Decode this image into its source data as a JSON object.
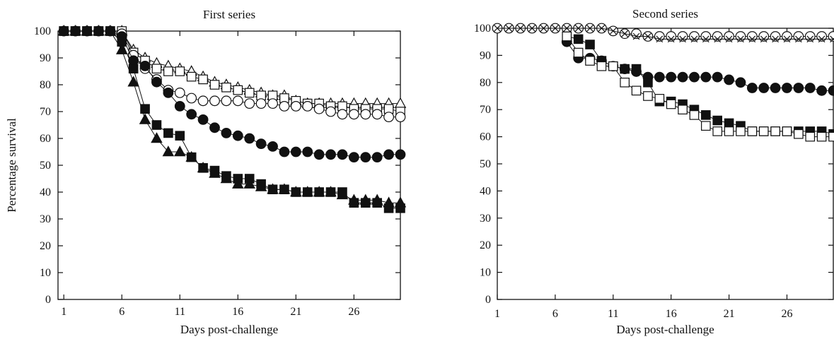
{
  "chart_data": [
    {
      "type": "scatter",
      "title": "First series",
      "xlabel": "Days post-challenge",
      "ylabel": "Percentage survival",
      "xlim": [
        0.5,
        30
      ],
      "ylim": [
        0,
        100
      ],
      "xticks": [
        1,
        6,
        11,
        16,
        21,
        26
      ],
      "yticks": [
        0,
        10,
        20,
        30,
        40,
        50,
        60,
        70,
        80,
        90,
        100
      ],
      "grid": false,
      "series": [
        {
          "marker": "triangle-open",
          "x": [
            1,
            2,
            3,
            4,
            5,
            6,
            7,
            8,
            9,
            10,
            11,
            12,
            13,
            14,
            15,
            16,
            17,
            18,
            19,
            20,
            21,
            22,
            23,
            24,
            25,
            26,
            27,
            28,
            29,
            30
          ],
          "values": [
            100,
            100,
            100,
            100,
            100,
            100,
            93,
            90,
            88,
            87,
            86,
            85,
            83,
            81,
            80,
            79,
            78,
            77,
            76,
            76,
            74,
            73,
            73,
            73,
            73,
            73,
            73,
            73,
            73,
            73
          ]
        },
        {
          "marker": "square-open",
          "x": [
            1,
            2,
            3,
            4,
            5,
            6,
            7,
            8,
            9,
            10,
            11,
            12,
            13,
            14,
            15,
            16,
            17,
            18,
            19,
            20,
            21,
            22,
            23,
            24,
            25,
            26,
            27,
            28,
            29,
            30
          ],
          "values": [
            100,
            100,
            100,
            100,
            100,
            100,
            92,
            89,
            86,
            85,
            85,
            83,
            82,
            80,
            79,
            78,
            77,
            76,
            76,
            75,
            74,
            73,
            73,
            72,
            72,
            71,
            71,
            71,
            71,
            70
          ]
        },
        {
          "marker": "circle-open",
          "x": [
            1,
            2,
            3,
            4,
            5,
            6,
            7,
            8,
            9,
            10,
            11,
            12,
            13,
            14,
            15,
            16,
            17,
            18,
            19,
            20,
            21,
            22,
            23,
            24,
            25,
            26,
            27,
            28,
            29,
            30
          ],
          "values": [
            100,
            100,
            100,
            100,
            100,
            99,
            91,
            86,
            82,
            78,
            77,
            75,
            74,
            74,
            74,
            74,
            73,
            73,
            73,
            72,
            72,
            72,
            71,
            70,
            69,
            69,
            69,
            69,
            68,
            68
          ]
        },
        {
          "marker": "circle-filled",
          "x": [
            1,
            2,
            3,
            4,
            5,
            6,
            7,
            8,
            9,
            10,
            11,
            12,
            13,
            14,
            15,
            16,
            17,
            18,
            19,
            20,
            21,
            22,
            23,
            24,
            25,
            26,
            27,
            28,
            29,
            30
          ],
          "values": [
            100,
            100,
            100,
            100,
            100,
            98,
            89,
            87,
            81,
            77,
            72,
            69,
            67,
            64,
            62,
            61,
            60,
            58,
            57,
            55,
            55,
            55,
            54,
            54,
            54,
            53,
            53,
            53,
            54,
            54
          ]
        },
        {
          "marker": "square-filled",
          "x": [
            1,
            2,
            3,
            4,
            5,
            6,
            7,
            8,
            9,
            10,
            11,
            12,
            13,
            14,
            15,
            16,
            17,
            18,
            19,
            20,
            21,
            22,
            23,
            24,
            25,
            26,
            27,
            28,
            29,
            30
          ],
          "values": [
            100,
            100,
            100,
            100,
            100,
            96,
            86,
            71,
            65,
            62,
            61,
            53,
            49,
            48,
            46,
            45,
            45,
            43,
            41,
            41,
            40,
            40,
            40,
            40,
            40,
            36,
            36,
            36,
            34,
            34
          ]
        },
        {
          "marker": "triangle-filled",
          "x": [
            1,
            2,
            3,
            4,
            5,
            6,
            7,
            8,
            9,
            10,
            11,
            12,
            13,
            14,
            15,
            16,
            17,
            18,
            19,
            20,
            21,
            22,
            23,
            24,
            25,
            26,
            27,
            28,
            29,
            30
          ],
          "values": [
            100,
            100,
            100,
            100,
            100,
            93,
            81,
            67,
            60,
            55,
            55,
            53,
            49,
            47,
            45,
            43,
            43,
            42,
            41,
            41,
            40,
            40,
            40,
            40,
            39,
            37,
            37,
            37,
            36,
            36
          ]
        }
      ]
    },
    {
      "type": "scatter",
      "title": "Second series",
      "xlabel": "Days post-challenge",
      "ylabel": "",
      "xlim": [
        1,
        30
      ],
      "ylim": [
        0,
        100
      ],
      "xticks": [
        1,
        6,
        11,
        16,
        21,
        26
      ],
      "yticks": [
        0,
        10,
        20,
        30,
        40,
        50,
        60,
        70,
        80,
        90,
        100
      ],
      "grid": false,
      "series": [
        {
          "marker": "circle-open",
          "x": [
            1,
            2,
            3,
            4,
            5,
            6,
            7,
            8,
            9,
            10,
            11,
            12,
            13,
            14,
            15,
            16,
            17,
            18,
            19,
            20,
            21,
            22,
            23,
            24,
            25,
            26,
            27,
            28,
            29,
            30
          ],
          "values": [
            100,
            100,
            100,
            100,
            100,
            100,
            100,
            100,
            100,
            100,
            99,
            98,
            98,
            97,
            97,
            97,
            97,
            97,
            97,
            97,
            97,
            97,
            97,
            97,
            97,
            97,
            97,
            97,
            97,
            97
          ]
        },
        {
          "marker": "cross",
          "x": [
            1,
            2,
            3,
            4,
            5,
            6,
            7,
            8,
            9,
            10,
            11,
            12,
            13,
            14,
            15,
            16,
            17,
            18,
            19,
            20,
            21,
            22,
            23,
            24,
            25,
            26,
            27,
            28,
            29,
            30
          ],
          "values": [
            100,
            100,
            100,
            100,
            100,
            100,
            100,
            100,
            100,
            100,
            99,
            98,
            97,
            97,
            96,
            96,
            96,
            96,
            96,
            96,
            96,
            96,
            96,
            96,
            96,
            96,
            96,
            96,
            96,
            96
          ]
        },
        {
          "marker": "circle-filled",
          "x": [
            7,
            8,
            9,
            10,
            11,
            12,
            13,
            14,
            15,
            16,
            17,
            18,
            19,
            20,
            21,
            22,
            23,
            24,
            25,
            26,
            27,
            28,
            29,
            30
          ],
          "values": [
            95,
            89,
            89,
            88,
            86,
            85,
            84,
            82,
            82,
            82,
            82,
            82,
            82,
            82,
            81,
            80,
            78,
            78,
            78,
            78,
            78,
            78,
            77,
            77
          ]
        },
        {
          "marker": "square-filled",
          "x": [
            7,
            8,
            9,
            10,
            11,
            12,
            13,
            14,
            15,
            16,
            17,
            18,
            19,
            20,
            21,
            22,
            23,
            24,
            25,
            26,
            27,
            28,
            29,
            30
          ],
          "values": [
            97,
            96,
            94,
            88,
            86,
            85,
            85,
            80,
            73,
            73,
            72,
            70,
            68,
            66,
            65,
            64,
            62,
            62,
            62,
            62,
            62,
            62,
            62,
            61
          ]
        },
        {
          "marker": "square-open",
          "x": [
            7,
            8,
            9,
            10,
            11,
            12,
            13,
            14,
            15,
            16,
            17,
            18,
            19,
            20,
            21,
            22,
            23,
            24,
            25,
            26,
            27,
            28,
            29,
            30
          ],
          "values": [
            97,
            91,
            88,
            86,
            86,
            80,
            77,
            75,
            74,
            72,
            70,
            68,
            64,
            62,
            62,
            62,
            62,
            62,
            62,
            62,
            61,
            60,
            60,
            60
          ]
        }
      ]
    }
  ]
}
